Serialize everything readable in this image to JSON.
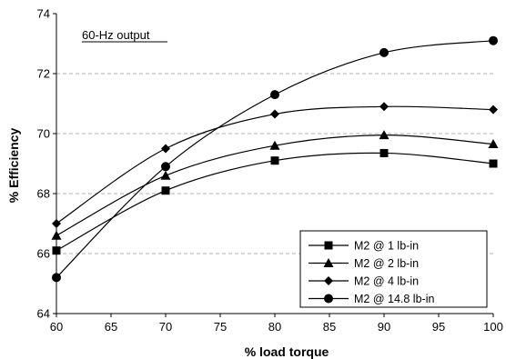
{
  "chart_data": {
    "type": "line",
    "title": "",
    "annotation": "60-Hz output",
    "xlabel": "% load torque",
    "ylabel": "% Efficiency",
    "xlim": [
      60,
      100
    ],
    "ylim": [
      64,
      74
    ],
    "x_ticks": [
      "60",
      "65",
      "70",
      "75",
      "80",
      "85",
      "90",
      "95",
      "100"
    ],
    "y_ticks": [
      "64",
      "66",
      "68",
      "70",
      "72",
      "74"
    ],
    "grid": "horizontal dashed",
    "legend_position": "right",
    "x": [
      60,
      70,
      80,
      90,
      100
    ],
    "series": [
      {
        "name": "M2 @ 1 lb-in",
        "marker": "square",
        "values": [
          66.1,
          68.1,
          69.1,
          69.35,
          69.0
        ]
      },
      {
        "name": "M2 @ 2 lb-in",
        "marker": "triangle",
        "values": [
          66.6,
          68.6,
          69.6,
          69.95,
          69.65
        ]
      },
      {
        "name": "M2 @ 4 lb-in",
        "marker": "diamond",
        "values": [
          67.0,
          69.5,
          70.65,
          70.9,
          70.8
        ]
      },
      {
        "name": "M2 @ 14.8 lb-in",
        "marker": "circle",
        "values": [
          65.2,
          68.9,
          71.3,
          72.7,
          73.1
        ]
      }
    ],
    "colors": {
      "line": "#000000",
      "grid": "#b0b0b0",
      "background": "#ffffff"
    }
  }
}
